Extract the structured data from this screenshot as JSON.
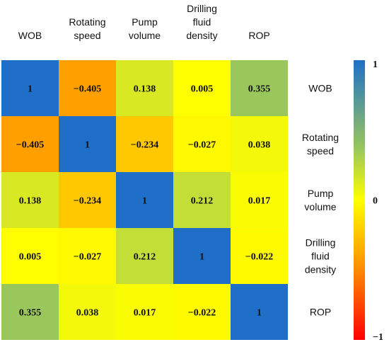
{
  "chart_data": {
    "type": "heatmap",
    "columns": [
      [
        "WOB"
      ],
      [
        "Rotating",
        "speed"
      ],
      [
        "Pump",
        "volume"
      ],
      [
        "Drilling",
        "fluid",
        "density"
      ],
      [
        "ROP"
      ]
    ],
    "rows": [
      [
        "WOB"
      ],
      [
        "Rotating",
        "speed"
      ],
      [
        "Pump",
        "volume"
      ],
      [
        "Drilling",
        "fluid",
        "density"
      ],
      [
        "ROP"
      ]
    ],
    "values": [
      [
        1,
        -0.405,
        0.138,
        0.005,
        0.355
      ],
      [
        -0.405,
        1,
        -0.234,
        -0.027,
        0.038
      ],
      [
        0.138,
        -0.234,
        1,
        0.212,
        0.017
      ],
      [
        0.005,
        -0.027,
        0.212,
        1,
        -0.022
      ],
      [
        0.355,
        0.038,
        0.017,
        -0.022,
        1
      ]
    ],
    "labels": [
      [
        "1",
        "−0.405",
        "0.138",
        "0.005",
        "0.355"
      ],
      [
        "−0.405",
        "1",
        "−0.234",
        "−0.027",
        "0.038"
      ],
      [
        "0.138",
        "−0.234",
        "1",
        "0.212",
        "0.017"
      ],
      [
        "0.005",
        "−0.027",
        "0.212",
        "1",
        "−0.022"
      ],
      [
        "0.355",
        "0.038",
        "0.017",
        "−0.022",
        "1"
      ]
    ],
    "colorbar": {
      "range": [
        -1,
        1
      ],
      "ticks": [
        {
          "value": 1,
          "label": "1"
        },
        {
          "value": 0,
          "label": "0"
        },
        {
          "value": -1,
          "label": "−1"
        }
      ],
      "placement": "right"
    },
    "colorscale": [
      [
        -1,
        "#ff0000"
      ],
      [
        -0.5,
        "#ff8a00"
      ],
      [
        0,
        "#ffff00"
      ],
      [
        0.35,
        "#9bc85a"
      ],
      [
        1,
        "#1f6fc8"
      ]
    ]
  }
}
